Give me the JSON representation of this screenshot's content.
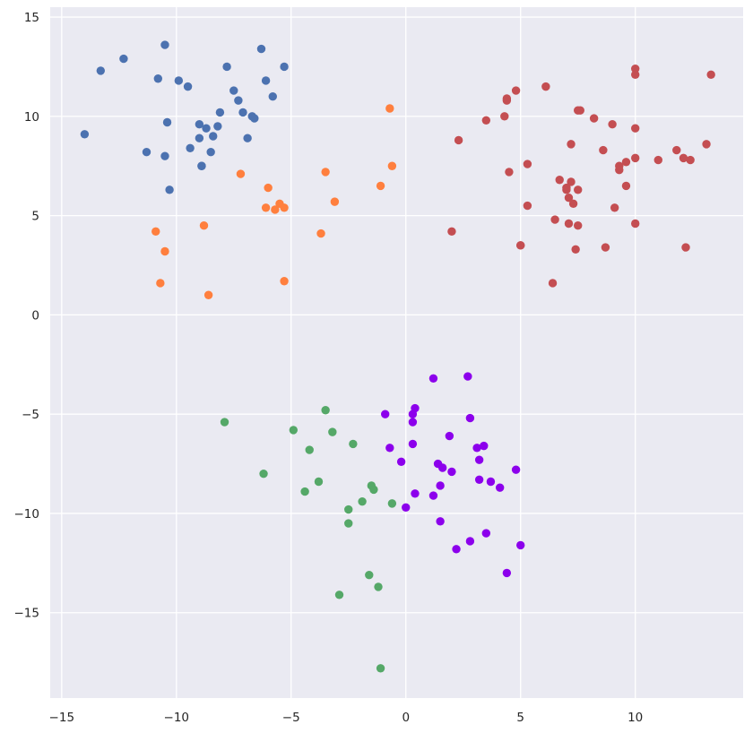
{
  "chart_data": {
    "type": "scatter",
    "title": "",
    "xlabel": "",
    "ylabel": "",
    "xlim": [
      -15.5,
      14.7
    ],
    "ylim": [
      -19.3,
      15.5
    ],
    "x_ticks": [
      -15,
      -10,
      -5,
      0,
      5,
      10
    ],
    "x_tick_labels": [
      "−15",
      "−10",
      "−5",
      "0",
      "5",
      "10"
    ],
    "y_ticks": [
      -15,
      -10,
      -5,
      0,
      5,
      10,
      15
    ],
    "y_tick_labels": [
      "−15",
      "−10",
      "−5",
      "0",
      "5",
      "10",
      "15"
    ],
    "grid": true,
    "legend": false,
    "background_color": "#eaeaf2",
    "grid_color": "#ffffff",
    "series": [
      {
        "color": "#4c72b0",
        "points": [
          [
            -14.0,
            9.1
          ],
          [
            -13.3,
            12.3
          ],
          [
            -12.3,
            12.9
          ],
          [
            -11.3,
            8.2
          ],
          [
            -10.8,
            11.9
          ],
          [
            -10.5,
            13.6
          ],
          [
            -10.5,
            8.0
          ],
          [
            -10.4,
            9.7
          ],
          [
            -10.3,
            6.3
          ],
          [
            -9.9,
            11.8
          ],
          [
            -9.5,
            11.5
          ],
          [
            -9.4,
            8.4
          ],
          [
            -9.0,
            9.6
          ],
          [
            -9.0,
            8.9
          ],
          [
            -8.9,
            7.5
          ],
          [
            -8.9,
            7.5
          ],
          [
            -8.7,
            9.4
          ],
          [
            -8.5,
            8.2
          ],
          [
            -8.4,
            9.0
          ],
          [
            -8.2,
            9.5
          ],
          [
            -8.1,
            10.2
          ],
          [
            -7.8,
            12.5
          ],
          [
            -7.5,
            11.3
          ],
          [
            -7.3,
            10.8
          ],
          [
            -7.1,
            10.2
          ],
          [
            -6.9,
            8.9
          ],
          [
            -6.7,
            10.0
          ],
          [
            -6.6,
            9.9
          ],
          [
            -6.3,
            13.4
          ],
          [
            -6.1,
            11.8
          ],
          [
            -5.8,
            11.0
          ],
          [
            -5.3,
            12.5
          ]
        ]
      },
      {
        "color": "#ff7f3e",
        "points": [
          [
            -10.9,
            4.2
          ],
          [
            -10.7,
            1.6
          ],
          [
            -10.5,
            3.2
          ],
          [
            -8.8,
            4.5
          ],
          [
            -8.6,
            1.0
          ],
          [
            -7.2,
            7.1
          ],
          [
            -6.1,
            5.4
          ],
          [
            -6.0,
            6.4
          ],
          [
            -5.7,
            5.3
          ],
          [
            -5.5,
            5.6
          ],
          [
            -5.3,
            5.4
          ],
          [
            -5.3,
            1.7
          ],
          [
            -3.7,
            4.1
          ],
          [
            -3.5,
            7.2
          ],
          [
            -3.1,
            5.7
          ],
          [
            -1.1,
            6.5
          ],
          [
            -0.7,
            10.4
          ],
          [
            -0.6,
            7.5
          ]
        ]
      },
      {
        "color": "#c44e52",
        "points": [
          [
            2.0,
            4.2
          ],
          [
            2.3,
            8.8
          ],
          [
            3.5,
            9.8
          ],
          [
            4.3,
            10.0
          ],
          [
            4.4,
            10.8
          ],
          [
            4.4,
            10.9
          ],
          [
            4.5,
            7.2
          ],
          [
            4.8,
            11.3
          ],
          [
            5.0,
            3.5
          ],
          [
            5.0,
            3.5
          ],
          [
            5.3,
            7.6
          ],
          [
            5.3,
            5.5
          ],
          [
            6.1,
            11.5
          ],
          [
            6.4,
            1.6
          ],
          [
            6.5,
            4.8
          ],
          [
            6.7,
            6.8
          ],
          [
            7.0,
            6.3
          ],
          [
            7.0,
            6.4
          ],
          [
            7.1,
            4.6
          ],
          [
            7.1,
            5.9
          ],
          [
            7.2,
            6.7
          ],
          [
            7.2,
            8.6
          ],
          [
            7.3,
            5.6
          ],
          [
            7.4,
            3.3
          ],
          [
            7.5,
            6.3
          ],
          [
            7.5,
            4.5
          ],
          [
            7.5,
            10.3
          ],
          [
            7.6,
            10.3
          ],
          [
            8.2,
            9.9
          ],
          [
            8.6,
            8.3
          ],
          [
            8.7,
            3.4
          ],
          [
            9.0,
            9.6
          ],
          [
            9.1,
            5.4
          ],
          [
            9.3,
            7.3
          ],
          [
            9.3,
            7.5
          ],
          [
            9.6,
            7.7
          ],
          [
            9.6,
            6.5
          ],
          [
            10.0,
            12.1
          ],
          [
            10.0,
            9.4
          ],
          [
            10.0,
            4.6
          ],
          [
            10.0,
            7.9
          ],
          [
            10.0,
            12.4
          ],
          [
            11.0,
            7.8
          ],
          [
            11.8,
            8.3
          ],
          [
            12.1,
            7.9
          ],
          [
            12.2,
            3.4
          ],
          [
            12.4,
            7.8
          ],
          [
            13.1,
            8.6
          ],
          [
            13.3,
            12.1
          ]
        ]
      },
      {
        "color": "#55a868",
        "points": [
          [
            -7.9,
            -5.4
          ],
          [
            -6.2,
            -8.0
          ],
          [
            -4.9,
            -5.8
          ],
          [
            -4.4,
            -8.9
          ],
          [
            -4.2,
            -6.8
          ],
          [
            -3.8,
            -8.4
          ],
          [
            -3.5,
            -4.8
          ],
          [
            -3.2,
            -5.9
          ],
          [
            -2.9,
            -14.1
          ],
          [
            -2.5,
            -9.8
          ],
          [
            -2.5,
            -10.5
          ],
          [
            -2.3,
            -6.5
          ],
          [
            -1.9,
            -9.4
          ],
          [
            -1.6,
            -13.1
          ],
          [
            -1.5,
            -8.6
          ],
          [
            -1.4,
            -8.8
          ],
          [
            -1.2,
            -13.7
          ],
          [
            -1.1,
            -17.8
          ],
          [
            -0.6,
            -9.5
          ]
        ]
      },
      {
        "color": "#8c00ec",
        "points": [
          [
            -0.9,
            -5.0
          ],
          [
            -0.7,
            -6.7
          ],
          [
            -0.2,
            -7.4
          ],
          [
            0.0,
            -9.7
          ],
          [
            0.3,
            -5.0
          ],
          [
            0.3,
            -5.4
          ],
          [
            0.3,
            -6.5
          ],
          [
            0.4,
            -4.7
          ],
          [
            0.4,
            -9.0
          ],
          [
            1.2,
            -3.2
          ],
          [
            1.2,
            -9.1
          ],
          [
            1.4,
            -7.5
          ],
          [
            1.5,
            -8.6
          ],
          [
            1.5,
            -10.4
          ],
          [
            1.6,
            -7.7
          ],
          [
            1.9,
            -6.1
          ],
          [
            2.0,
            -7.9
          ],
          [
            2.2,
            -11.8
          ],
          [
            2.7,
            -3.1
          ],
          [
            2.8,
            -5.2
          ],
          [
            2.8,
            -11.4
          ],
          [
            3.1,
            -6.7
          ],
          [
            3.2,
            -7.3
          ],
          [
            3.2,
            -8.3
          ],
          [
            3.4,
            -6.6
          ],
          [
            3.5,
            -11.0
          ],
          [
            3.7,
            -8.4
          ],
          [
            4.1,
            -8.7
          ],
          [
            4.4,
            -13.0
          ],
          [
            4.8,
            -7.8
          ],
          [
            5.0,
            -11.6
          ]
        ]
      }
    ]
  }
}
